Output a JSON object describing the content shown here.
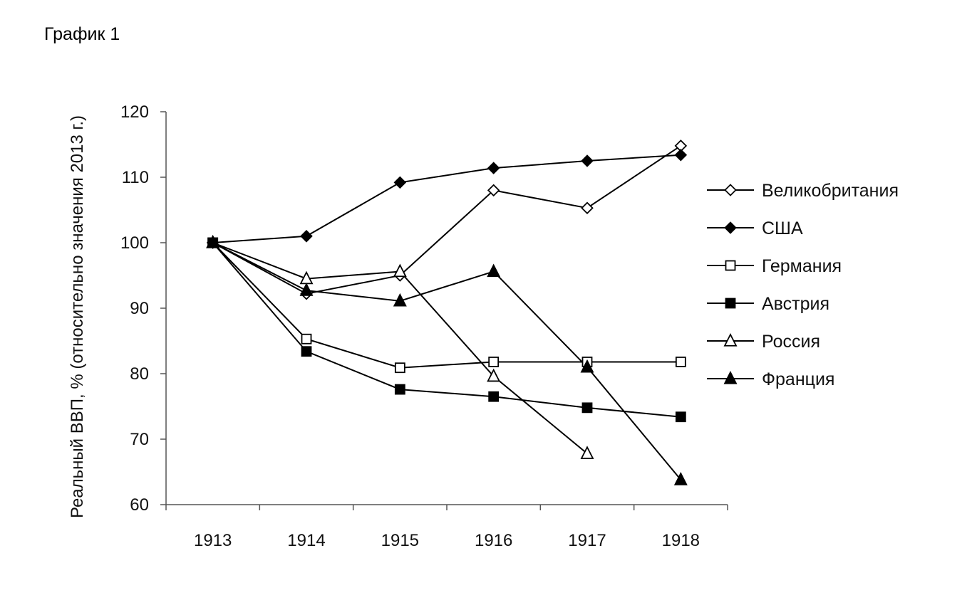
{
  "chart_data": {
    "type": "line",
    "title": "График 1",
    "ylabel": "Реальный ВВП, % (относительно значения 2013 г.)",
    "xlabel": "",
    "x": [
      "1913",
      "1914",
      "1915",
      "1916",
      "1917",
      "1918"
    ],
    "ylim": [
      60,
      120
    ],
    "yticks": [
      60,
      70,
      80,
      90,
      100,
      110,
      120
    ],
    "grid": false,
    "legend_position": "right",
    "series": [
      {
        "name": "Великобритания",
        "marker": "diamond-open",
        "values": [
          100,
          92.2,
          95.0,
          108.0,
          105.3,
          114.8
        ]
      },
      {
        "name": "США",
        "marker": "diamond-filled",
        "values": [
          100,
          101.0,
          109.2,
          111.4,
          112.5,
          113.4
        ]
      },
      {
        "name": "Германия",
        "marker": "square-open",
        "values": [
          100,
          85.3,
          80.9,
          81.8,
          81.8,
          81.8
        ]
      },
      {
        "name": "Австрия",
        "marker": "square-filled",
        "values": [
          100,
          83.4,
          77.6,
          76.5,
          74.8,
          73.4
        ]
      },
      {
        "name": "Россия",
        "marker": "triangle-open",
        "values": [
          100,
          94.5,
          95.6,
          79.6,
          67.8,
          null
        ]
      },
      {
        "name": "Франция",
        "marker": "triangle-filled",
        "values": [
          100,
          92.7,
          91.1,
          95.6,
          81.0,
          63.8
        ]
      }
    ]
  },
  "colors": {
    "line": "#000000",
    "axis": "#555555",
    "background": "#ffffff"
  }
}
